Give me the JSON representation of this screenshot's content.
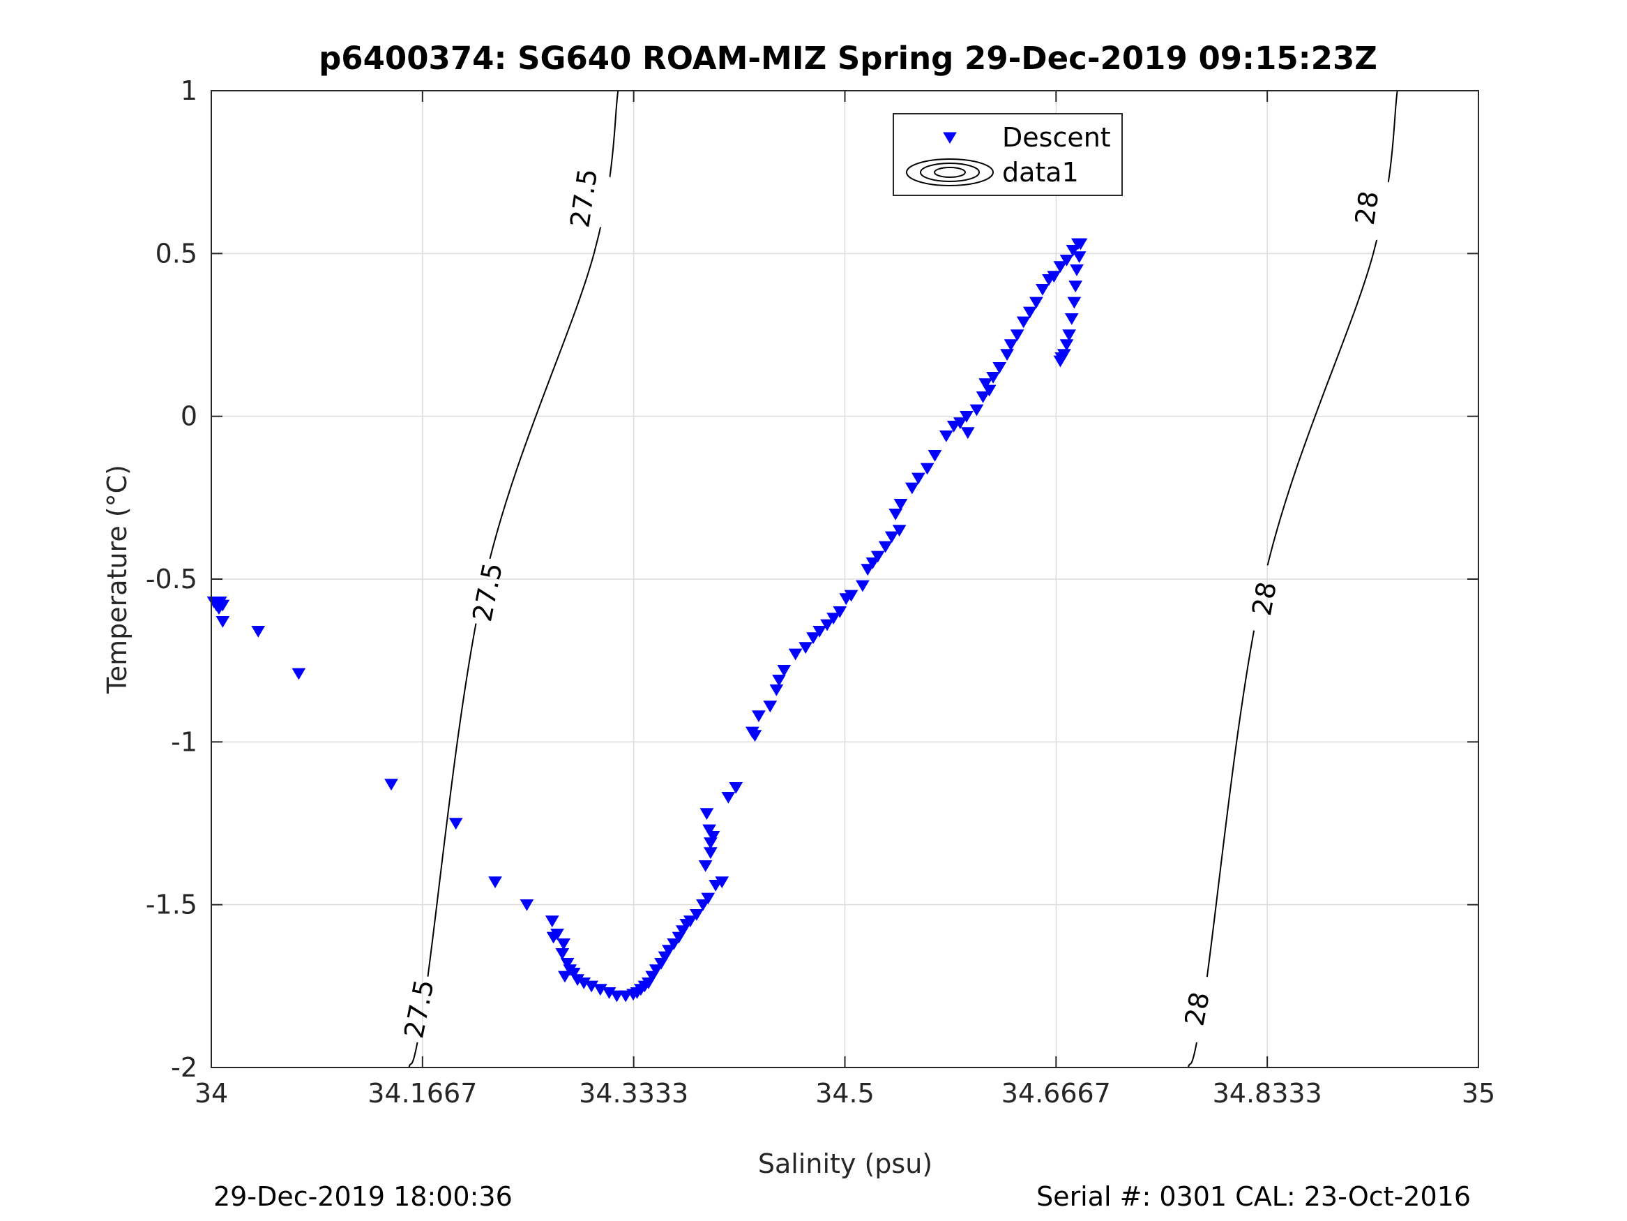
{
  "chart_data": {
    "type": "scatter",
    "title": "p6400374: SG640 ROAM-MIZ Spring 29-Dec-2019 09:15:23Z",
    "xlabel": "Salinity (psu)",
    "ylabel": "Temperature (°C)",
    "xlim": [
      34,
      35
    ],
    "ylim": [
      -2,
      1
    ],
    "x_ticks": [
      "34",
      "34.1667",
      "34.3333",
      "34.5",
      "34.6667",
      "34.8333",
      "35"
    ],
    "y_ticks": [
      "1",
      "0.5",
      "0",
      "-0.5",
      "-1",
      "-1.5",
      "-2"
    ],
    "grid": true,
    "legend": {
      "placement": "top-center",
      "entries": [
        "Descent",
        "data1"
      ]
    },
    "series": [
      {
        "name": "Descent",
        "marker": "downward-triangle",
        "color": "#0000ff",
        "points": [
          [
            34.002,
            -0.57
          ],
          [
            34.004,
            -0.58
          ],
          [
            34.007,
            -0.57
          ],
          [
            34.006,
            -0.59
          ],
          [
            34.009,
            -0.58
          ],
          [
            34.009,
            -0.63
          ],
          [
            34.037,
            -0.66
          ],
          [
            34.069,
            -0.79
          ],
          [
            34.142,
            -1.13
          ],
          [
            34.193,
            -1.25
          ],
          [
            34.224,
            -1.43
          ],
          [
            34.249,
            -1.5
          ],
          [
            34.269,
            -1.55
          ],
          [
            34.273,
            -1.59
          ],
          [
            34.278,
            -1.62
          ],
          [
            34.27,
            -1.6
          ],
          [
            34.277,
            -1.65
          ],
          [
            34.281,
            -1.68
          ],
          [
            34.283,
            -1.7
          ],
          [
            34.279,
            -1.72
          ],
          [
            34.286,
            -1.71
          ],
          [
            34.289,
            -1.73
          ],
          [
            34.294,
            -1.74
          ],
          [
            34.3,
            -1.75
          ],
          [
            34.307,
            -1.76
          ],
          [
            34.314,
            -1.77
          ],
          [
            34.32,
            -1.78
          ],
          [
            34.327,
            -1.78
          ],
          [
            34.333,
            -1.775
          ],
          [
            34.336,
            -1.77
          ],
          [
            34.339,
            -1.76
          ],
          [
            34.342,
            -1.75
          ],
          [
            34.345,
            -1.74
          ],
          [
            34.348,
            -1.72
          ],
          [
            34.351,
            -1.7
          ],
          [
            34.355,
            -1.68
          ],
          [
            34.358,
            -1.66
          ],
          [
            34.361,
            -1.64
          ],
          [
            34.365,
            -1.62
          ],
          [
            34.369,
            -1.6
          ],
          [
            34.372,
            -1.58
          ],
          [
            34.375,
            -1.56
          ],
          [
            34.378,
            -1.55
          ],
          [
            34.383,
            -1.53
          ],
          [
            34.388,
            -1.5
          ],
          [
            34.392,
            -1.48
          ],
          [
            34.398,
            -1.44
          ],
          [
            34.403,
            -1.43
          ],
          [
            34.39,
            -1.38
          ],
          [
            34.394,
            -1.34
          ],
          [
            34.394,
            -1.31
          ],
          [
            34.396,
            -1.29
          ],
          [
            34.393,
            -1.27
          ],
          [
            34.391,
            -1.22
          ],
          [
            34.408,
            -1.17
          ],
          [
            34.414,
            -1.14
          ],
          [
            34.429,
            -0.98
          ],
          [
            34.427,
            -0.97
          ],
          [
            34.432,
            -0.92
          ],
          [
            34.441,
            -0.89
          ],
          [
            34.446,
            -0.84
          ],
          [
            34.448,
            -0.81
          ],
          [
            34.452,
            -0.78
          ],
          [
            34.461,
            -0.73
          ],
          [
            34.469,
            -0.71
          ],
          [
            34.475,
            -0.68
          ],
          [
            34.48,
            -0.66
          ],
          [
            34.486,
            -0.64
          ],
          [
            34.491,
            -0.62
          ],
          [
            34.496,
            -0.6
          ],
          [
            34.501,
            -0.56
          ],
          [
            34.505,
            -0.55
          ],
          [
            34.514,
            -0.52
          ],
          [
            34.518,
            -0.47
          ],
          [
            34.522,
            -0.45
          ],
          [
            34.526,
            -0.43
          ],
          [
            34.532,
            -0.4
          ],
          [
            34.537,
            -0.37
          ],
          [
            34.543,
            -0.35
          ],
          [
            34.54,
            -0.3
          ],
          [
            34.544,
            -0.27
          ],
          [
            34.553,
            -0.22
          ],
          [
            34.558,
            -0.19
          ],
          [
            34.565,
            -0.16
          ],
          [
            34.571,
            -0.12
          ],
          [
            34.58,
            -0.06
          ],
          [
            34.586,
            -0.03
          ],
          [
            34.591,
            -0.02
          ],
          [
            34.596,
            0.0
          ],
          [
            34.597,
            -0.05
          ],
          [
            34.604,
            0.02
          ],
          [
            34.609,
            0.06
          ],
          [
            34.614,
            0.08
          ],
          [
            34.611,
            0.1
          ],
          [
            34.617,
            0.12
          ],
          [
            34.622,
            0.15
          ],
          [
            34.628,
            0.19
          ],
          [
            34.631,
            0.22
          ],
          [
            34.636,
            0.25
          ],
          [
            34.641,
            0.29
          ],
          [
            34.646,
            0.32
          ],
          [
            34.651,
            0.35
          ],
          [
            34.656,
            0.39
          ],
          [
            34.661,
            0.42
          ],
          [
            34.665,
            0.43
          ],
          [
            34.67,
            0.46
          ],
          [
            34.675,
            0.48
          ],
          [
            34.68,
            0.51
          ],
          [
            34.684,
            0.53
          ],
          [
            34.686,
            0.53
          ],
          [
            34.685,
            0.49
          ],
          [
            34.683,
            0.45
          ],
          [
            34.682,
            0.4
          ],
          [
            34.681,
            0.35
          ],
          [
            34.679,
            0.3
          ],
          [
            34.677,
            0.25
          ],
          [
            34.675,
            0.22
          ],
          [
            34.673,
            0.19
          ],
          [
            34.671,
            0.18
          ],
          [
            34.67,
            0.17
          ]
        ]
      }
    ],
    "density_contours": [
      {
        "level": "27.5",
        "points": [
          [
            34.156,
            -2.0
          ],
          [
            34.168,
            -1.8
          ],
          [
            34.216,
            -0.5
          ],
          [
            34.302,
            0.5
          ],
          [
            34.321,
            1.0
          ]
        ],
        "label_positions": [
          [
            34.164,
            -1.82
          ],
          [
            34.218,
            -0.54
          ],
          [
            34.294,
            0.67
          ]
        ]
      },
      {
        "level": "28",
        "points": [
          [
            34.771,
            -2.0
          ],
          [
            34.783,
            -1.8
          ],
          [
            34.831,
            -0.5
          ],
          [
            34.917,
            0.5
          ],
          [
            34.936,
            1.0
          ]
        ],
        "label_positions": [
          [
            34.778,
            -1.82
          ],
          [
            34.831,
            -0.56
          ],
          [
            34.912,
            0.64
          ]
        ]
      }
    ]
  },
  "footer": {
    "left": "29-Dec-2019 18:00:36",
    "right": "Serial #: 0301  CAL: 23-Oct-2016"
  }
}
